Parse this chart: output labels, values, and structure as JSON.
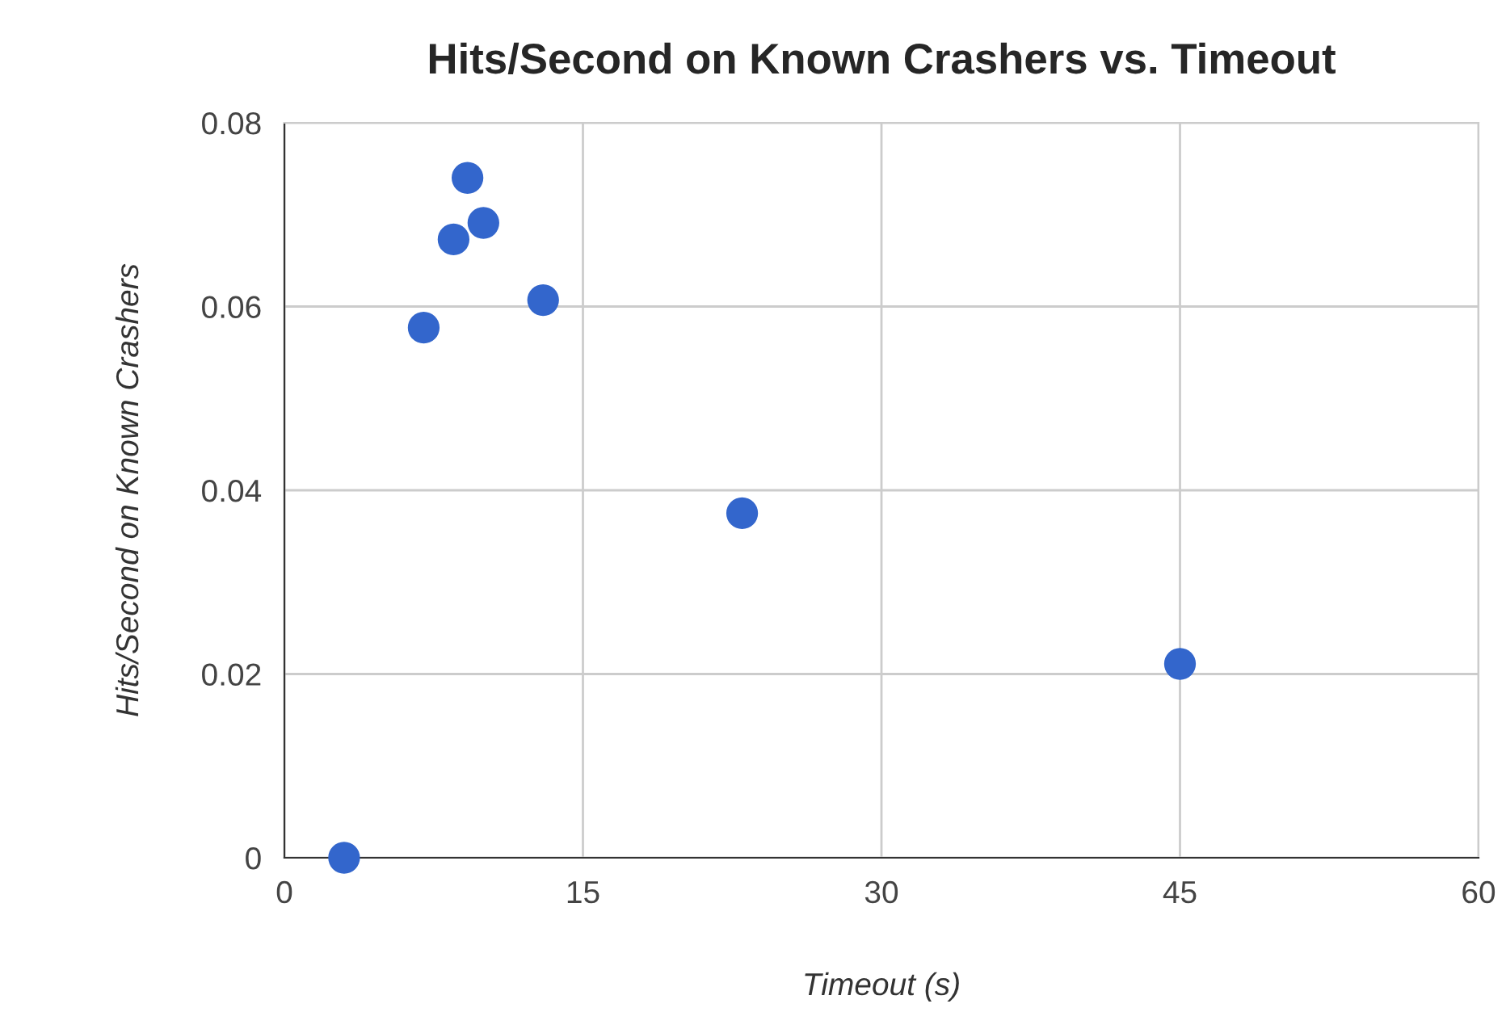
{
  "chart_data": {
    "type": "scatter",
    "title": "Hits/Second on Known Crashers vs. Timeout",
    "xlabel": "Timeout (s)",
    "ylabel": "Hits/Second on Known Crashers",
    "x": [
      3,
      7,
      8.5,
      9.2,
      10,
      13,
      23,
      45
    ],
    "series": [
      {
        "color": "#3366cc",
        "values": [
          0,
          0.0577,
          0.0673,
          0.074,
          0.0691,
          0.0607,
          0.0375,
          0.0211
        ]
      }
    ],
    "xlim": [
      0,
      60
    ],
    "xticks": [
      0,
      15,
      30,
      45,
      60
    ],
    "ylim": [
      0,
      0.08
    ],
    "yticks": [
      0,
      0.02,
      0.04,
      0.06,
      0.08
    ],
    "grid": true,
    "marker": "circle"
  }
}
